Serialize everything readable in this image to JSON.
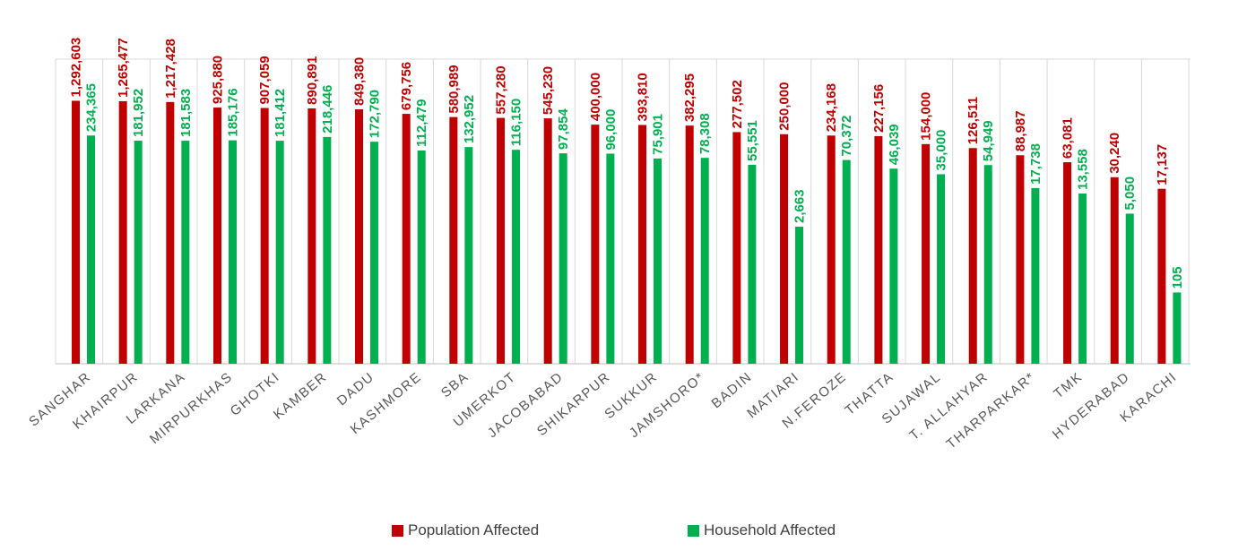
{
  "colors": {
    "population": "#C00000",
    "household": "#00B050",
    "grid": "#D9D9D9",
    "axis": "#BFBFBF",
    "tick_text": "#595959"
  },
  "chart_data": {
    "type": "bar",
    "categories": [
      "SANGHAR",
      "KHAIRPUR",
      "LARKANA",
      "MIRPURKHAS",
      "GHOTKI",
      "KAMBER",
      "DADU",
      "KASHMORE",
      "SBA",
      "UMERKOT",
      "JACOBABAD",
      "SHIKARPUR",
      "SUKKUR",
      "JAMSHORO*",
      "BADIN",
      "MATIARI",
      "N.FEROZE",
      "THATTA",
      "SUJAWAL",
      "T. ALLAHYAR",
      "THARPARKAR*",
      "TMK",
      "HYDERABAD",
      "KARACHI"
    ],
    "series": [
      {
        "name": "Population Affected",
        "values": [
          1292603,
          1265477,
          1217428,
          925880,
          907059,
          890891,
          849380,
          679756,
          580989,
          557280,
          545230,
          400000,
          393810,
          382295,
          277502,
          250000,
          234168,
          227156,
          154000,
          126511,
          88987,
          63081,
          30240,
          17137
        ],
        "labels": [
          "1,292,603",
          "1,265,477",
          "1,217,428",
          "925,880",
          "907,059",
          "890,891",
          "849,380",
          "679,756",
          "580,989",
          "557,280",
          "545,230",
          "400,000",
          "393,810",
          "382,295",
          "277,502",
          "250,000",
          "234,168",
          "227,156",
          "154,000",
          "126,511",
          "88,987",
          "63,081",
          "30,240",
          "17,137"
        ]
      },
      {
        "name": "Household Affected",
        "values": [
          234365,
          181952,
          181583,
          185176,
          181412,
          218446,
          172790,
          112479,
          132952,
          116150,
          97854,
          96000,
          75901,
          78308,
          55551,
          2663,
          70372,
          46039,
          35000,
          54949,
          17738,
          13558,
          5050,
          105
        ],
        "labels": [
          "234,365",
          "181,952",
          "181,583",
          "185,176",
          "181,412",
          "218,446",
          "172,790",
          "112,479",
          "132,952",
          "116,150",
          "97,854",
          "96,000",
          "75,901",
          "78,308",
          "55,551",
          "2,663",
          "70,372",
          "46,039",
          "35,000",
          "54,949",
          "17,738",
          "13,558",
          "5,050",
          "105"
        ]
      }
    ],
    "scale": "log",
    "grid": true,
    "legend_position": "bottom-center"
  }
}
